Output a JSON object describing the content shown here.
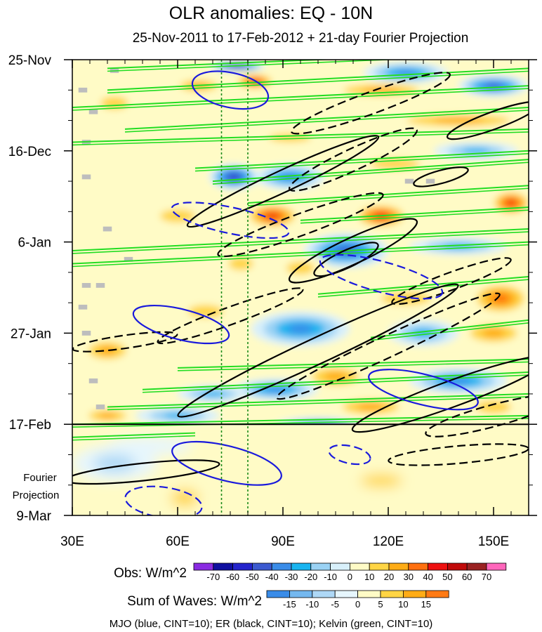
{
  "chart_data": {
    "type": "heatmap",
    "title": "OLR anomalies: EQ - 10N",
    "subtitle": "25-Nov-2011 to 17-Feb-2012 + 21-day Fourier Projection",
    "x_range": [
      30,
      160
    ],
    "x_ticks": [
      {
        "value": 30,
        "label": "30E"
      },
      {
        "value": 60,
        "label": "60E"
      },
      {
        "value": 90,
        "label": "90E"
      },
      {
        "value": 120,
        "label": "120E"
      },
      {
        "value": 150,
        "label": "150E"
      }
    ],
    "y_range_days": [
      0,
      105
    ],
    "y_ticks": [
      {
        "day": 0,
        "label": "25-Nov"
      },
      {
        "day": 21,
        "label": "16-Dec"
      },
      {
        "day": 42,
        "label": "6-Jan"
      },
      {
        "day": 63,
        "label": "27-Jan"
      },
      {
        "day": 84,
        "label": "17-Feb"
      },
      {
        "day": 105,
        "label": "9-Mar"
      }
    ],
    "projection_start_day": 84,
    "projection_label_line1": "Fourier",
    "projection_label_line2": "Projection",
    "reference_longitudes": [
      72.5,
      80
    ],
    "observed_legend": {
      "label": "Obs: W/m^2",
      "levels": [
        "-70",
        "-60",
        "-50",
        "-40",
        "-30",
        "-20",
        "-10",
        "0",
        "10",
        "20",
        "30",
        "40",
        "50",
        "60",
        "70"
      ],
      "colors": [
        "#8a2be2",
        "#1010a0",
        "#2424cc",
        "#3c5ad0",
        "#3a8ce8",
        "#18b4f0",
        "#9ad2f4",
        "#d8f0fb",
        "#fffbc6",
        "#ffd545",
        "#ffac16",
        "#ff7010",
        "#ee1111",
        "#c00a0a",
        "#9a2222",
        "#ff66bb"
      ]
    },
    "waves_legend": {
      "label": "Sum of Waves: W/m^2",
      "levels": [
        "-15",
        "-10",
        "-5",
        "0",
        "5",
        "10",
        "15"
      ],
      "colors": [
        "#3a8ce8",
        "#74b8ef",
        "#aed8f6",
        "#e6f6fd",
        "#fffbc6",
        "#ffd545",
        "#ffac16",
        "#ff7a14"
      ]
    },
    "footer": "MJO (blue, CINT=10); ER (black, CINT=10); Kelvin (green, CINT=10)",
    "contour_legend": [
      {
        "name": "MJO",
        "color": "#1a1adc",
        "cint": 10
      },
      {
        "name": "ER",
        "color": "#000000",
        "cint": 10
      },
      {
        "name": "Kelvin",
        "color": "#22dd22",
        "cint": 10
      }
    ],
    "observed_features": [
      {
        "lon": 77,
        "day": 1.5,
        "rx": 8,
        "ry": 1.2,
        "value": -70
      },
      {
        "lon": 82,
        "day": 5,
        "rx": 6,
        "ry": 2,
        "value": 50
      },
      {
        "lon": 66,
        "day": 6,
        "rx": 8,
        "ry": 2,
        "value": 30
      },
      {
        "lon": 125,
        "day": 3,
        "rx": 12,
        "ry": 2.5,
        "value": -40
      },
      {
        "lon": 118,
        "day": 7,
        "rx": 16,
        "ry": 2,
        "value": 30
      },
      {
        "lon": 150,
        "day": 6,
        "rx": 10,
        "ry": 2.5,
        "value": -50
      },
      {
        "lon": 42,
        "day": 10,
        "rx": 8,
        "ry": 3,
        "value": 20
      },
      {
        "lon": 140,
        "day": 14,
        "rx": 22,
        "ry": 2,
        "value": 30
      },
      {
        "lon": 92,
        "day": 18,
        "rx": 12,
        "ry": 2,
        "value": 20
      },
      {
        "lon": 76,
        "day": 27,
        "rx": 7,
        "ry": 3,
        "value": -60
      },
      {
        "lon": 92,
        "day": 27,
        "rx": 10,
        "ry": 3,
        "value": -40
      },
      {
        "lon": 122,
        "day": 24,
        "rx": 14,
        "ry": 2.5,
        "value": 20
      },
      {
        "lon": 145,
        "day": 21,
        "rx": 12,
        "ry": 2,
        "value": -30
      },
      {
        "lon": 87,
        "day": 36,
        "rx": 8,
        "ry": 3,
        "value": 50
      },
      {
        "lon": 118,
        "day": 36,
        "rx": 8,
        "ry": 3,
        "value": 50
      },
      {
        "lon": 155,
        "day": 33,
        "rx": 6,
        "ry": 3,
        "value": 50
      },
      {
        "lon": 60,
        "day": 36,
        "rx": 10,
        "ry": 3,
        "value": 20
      },
      {
        "lon": 108,
        "day": 44,
        "rx": 12,
        "ry": 4,
        "value": -50
      },
      {
        "lon": 140,
        "day": 43,
        "rx": 14,
        "ry": 2,
        "value": -30
      },
      {
        "lon": 95,
        "day": 48,
        "rx": 8,
        "ry": 3,
        "value": 20
      },
      {
        "lon": 78,
        "day": 47,
        "rx": 7,
        "ry": 3,
        "value": 20
      },
      {
        "lon": 152,
        "day": 55,
        "rx": 9,
        "ry": 4,
        "value": 40
      },
      {
        "lon": 125,
        "day": 55,
        "rx": 14,
        "ry": 3,
        "value": 20
      },
      {
        "lon": 68,
        "day": 58,
        "rx": 10,
        "ry": 3,
        "value": 20
      },
      {
        "lon": 95,
        "day": 62,
        "rx": 14,
        "ry": 4,
        "value": -40
      },
      {
        "lon": 130,
        "day": 63,
        "rx": 10,
        "ry": 3,
        "value": -30
      },
      {
        "lon": 150,
        "day": 63,
        "rx": 10,
        "ry": 3,
        "value": 30
      },
      {
        "lon": 40,
        "day": 67,
        "rx": 8,
        "ry": 3,
        "value": 30
      },
      {
        "lon": 105,
        "day": 73,
        "rx": 10,
        "ry": 3,
        "value": 30
      },
      {
        "lon": 88,
        "day": 76,
        "rx": 12,
        "ry": 2.5,
        "value": -40
      },
      {
        "lon": 140,
        "day": 74,
        "rx": 14,
        "ry": 3,
        "value": -40
      },
      {
        "lon": 70,
        "day": 77,
        "rx": 10,
        "ry": 2,
        "value": -30
      },
      {
        "lon": 115,
        "day": 80,
        "rx": 12,
        "ry": 2.5,
        "value": 30
      },
      {
        "lon": 60,
        "day": 82,
        "rx": 12,
        "ry": 2,
        "value": -30
      },
      {
        "lon": 150,
        "day": 80,
        "rx": 10,
        "ry": 3,
        "value": 20
      },
      {
        "lon": 40,
        "day": 82,
        "rx": 8,
        "ry": 2,
        "value": 30
      },
      {
        "lon": 100,
        "day": 84,
        "rx": 12,
        "ry": 1.5,
        "value": -40
      }
    ],
    "waves_features": [
      {
        "lon": 52,
        "day": 89,
        "rx": 12,
        "ry": 2,
        "value": -5
      },
      {
        "lon": 42,
        "day": 93,
        "rx": 12,
        "ry": 4,
        "value": -10
      },
      {
        "lon": 112,
        "day": 89,
        "rx": 10,
        "ry": 2,
        "value": 5
      },
      {
        "lon": 150,
        "day": 89,
        "rx": 10,
        "ry": 2,
        "value": 5
      },
      {
        "lon": 118,
        "day": 97,
        "rx": 12,
        "ry": 3,
        "value": 10
      },
      {
        "lon": 62,
        "day": 101,
        "rx": 8,
        "ry": 4,
        "value": 10
      },
      {
        "lon": 145,
        "day": 101,
        "rx": 10,
        "ry": 3,
        "value": 5
      },
      {
        "lon": 100,
        "day": 104,
        "rx": 14,
        "ry": 2,
        "value": 5
      }
    ],
    "mjo_contours": [
      {
        "cx": 75,
        "cy": 7,
        "rx": 11,
        "ry": 4,
        "rot": 12,
        "dash": false
      },
      {
        "cx": 75,
        "cy": 37,
        "rx": 17,
        "ry": 3,
        "rot": 12,
        "dash": true
      },
      {
        "cx": 61,
        "cy": 61,
        "rx": 14,
        "ry": 3.5,
        "rot": 14,
        "dash": false
      },
      {
        "cx": 118,
        "cy": 50,
        "rx": 18,
        "ry": 3.5,
        "rot": 15,
        "dash": true
      },
      {
        "cx": 130,
        "cy": 76,
        "rx": 16,
        "ry": 3.5,
        "rot": 14,
        "dash": false
      },
      {
        "cx": 74,
        "cy": 93,
        "rx": 16,
        "ry": 4,
        "rot": 14,
        "dash": false
      },
      {
        "cx": 56,
        "cy": 102,
        "rx": 11,
        "ry": 3.5,
        "rot": 8,
        "dash": true
      },
      {
        "cx": 109,
        "cy": 91,
        "rx": 6,
        "ry": 2,
        "rot": 12,
        "dash": true
      }
    ],
    "er_contours": [
      {
        "cx": 115,
        "cy": 10,
        "rx": 24,
        "ry": 2.5,
        "rot": -20,
        "dash": true
      },
      {
        "cx": 90,
        "cy": 28,
        "rx": 30,
        "ry": 2.5,
        "rot": -25,
        "dash": false
      },
      {
        "cx": 110,
        "cy": 23,
        "rx": 20,
        "ry": 2.5,
        "rot": -25,
        "dash": true
      },
      {
        "cx": 150,
        "cy": 14,
        "rx": 14,
        "ry": 2,
        "rot": -20,
        "dash": false
      },
      {
        "cx": 135,
        "cy": 27,
        "rx": 8,
        "ry": 1.5,
        "rot": -15,
        "dash": false
      },
      {
        "cx": 95,
        "cy": 38,
        "rx": 25,
        "ry": 2.5,
        "rot": -20,
        "dash": true
      },
      {
        "cx": 110,
        "cy": 44,
        "rx": 20,
        "ry": 3,
        "rot": -25,
        "dash": false
      },
      {
        "cx": 108,
        "cy": 46,
        "rx": 10,
        "ry": 2,
        "rot": -25,
        "dash": false
      },
      {
        "cx": 75,
        "cy": 59,
        "rx": 22,
        "ry": 2,
        "rot": -20,
        "dash": true
      },
      {
        "cx": 138,
        "cy": 51,
        "rx": 18,
        "ry": 2,
        "rot": -20,
        "dash": true
      },
      {
        "cx": 100,
        "cy": 67,
        "rx": 44,
        "ry": 3,
        "rot": -25,
        "dash": false
      },
      {
        "cx": 120,
        "cy": 66,
        "rx": 35,
        "ry": 2.5,
        "rot": -25,
        "dash": true
      },
      {
        "cx": 138,
        "cy": 77,
        "rx": 30,
        "ry": 3,
        "rot": -20,
        "dash": false
      },
      {
        "cx": 150,
        "cy": 82,
        "rx": 20,
        "ry": 2.5,
        "rot": -15,
        "dash": true
      },
      {
        "cx": 50,
        "cy": 95,
        "rx": 22,
        "ry": 2,
        "rot": -6,
        "dash": false
      },
      {
        "cx": 140,
        "cy": 91,
        "rx": 20,
        "ry": 2,
        "rot": -5,
        "dash": true
      },
      {
        "cx": 45,
        "cy": 65,
        "rx": 15,
        "ry": 1.5,
        "rot": -8,
        "dash": true
      }
    ],
    "kelvin_bands": [
      {
        "lon1": 40,
        "day1": 2,
        "lon2": 160,
        "day2": -2
      },
      {
        "lon1": 40,
        "day1": 7,
        "lon2": 160,
        "day2": 2
      },
      {
        "lon1": 30,
        "day1": 11,
        "lon2": 160,
        "day2": 6
      },
      {
        "lon1": 45,
        "day1": 16,
        "lon2": 160,
        "day2": 11
      },
      {
        "lon1": 30,
        "day1": 19,
        "lon2": 160,
        "day2": 16
      },
      {
        "lon1": 65,
        "day1": 25,
        "lon2": 160,
        "day2": 21
      },
      {
        "lon1": 70,
        "day1": 28,
        "lon2": 160,
        "day2": 23
      },
      {
        "lon1": 80,
        "day1": 33,
        "lon2": 160,
        "day2": 29
      },
      {
        "lon1": 95,
        "day1": 37,
        "lon2": 160,
        "day2": 34
      },
      {
        "lon1": 30,
        "day1": 44,
        "lon2": 160,
        "day2": 39
      },
      {
        "lon1": 30,
        "day1": 47,
        "lon2": 160,
        "day2": 42
      },
      {
        "lon1": 100,
        "day1": 54,
        "lon2": 160,
        "day2": 50
      },
      {
        "lon1": 115,
        "day1": 64,
        "lon2": 160,
        "day2": 60
      },
      {
        "lon1": 60,
        "day1": 71,
        "lon2": 160,
        "day2": 69
      },
      {
        "lon1": 50,
        "day1": 76,
        "lon2": 160,
        "day2": 72
      },
      {
        "lon1": 40,
        "day1": 80,
        "lon2": 160,
        "day2": 77
      },
      {
        "lon1": 30,
        "day1": 84,
        "lon2": 160,
        "day2": 82
      },
      {
        "lon1": 30,
        "day1": 87,
        "lon2": 65,
        "day2": 86
      }
    ],
    "missing_data_cells": [
      {
        "lon": 42,
        "day": 2.5
      },
      {
        "lon": 33,
        "day": 7
      },
      {
        "lon": 36,
        "day": 12
      },
      {
        "lon": 34,
        "day": 19
      },
      {
        "lon": 34,
        "day": 27
      },
      {
        "lon": 126,
        "day": 28
      },
      {
        "lon": 132,
        "day": 28
      },
      {
        "lon": 40,
        "day": 39
      },
      {
        "lon": 46,
        "day": 46
      },
      {
        "lon": 34,
        "day": 52
      },
      {
        "lon": 38,
        "day": 52
      },
      {
        "lon": 33,
        "day": 57
      },
      {
        "lon": 34,
        "day": 63
      },
      {
        "lon": 36,
        "day": 74
      },
      {
        "lon": 38,
        "day": 80
      }
    ]
  }
}
